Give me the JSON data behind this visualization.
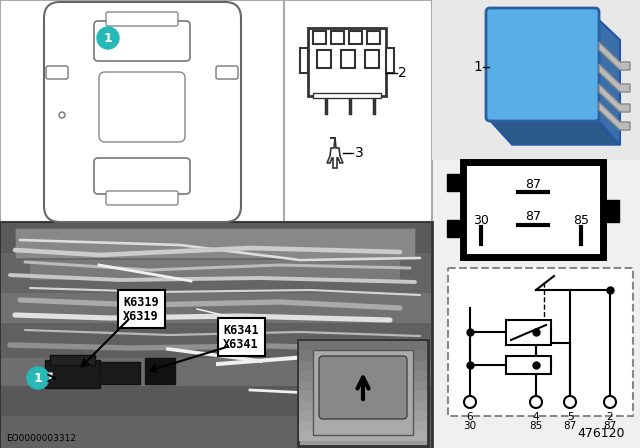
{
  "bg_color": "#f0f0f0",
  "white": "#ffffff",
  "black": "#000000",
  "cyan_color": "#29b8b8",
  "blue_relay_light": "#5aaee8",
  "blue_relay_dark": "#3a7fbb",
  "eo_code": "EO0000003312",
  "part_number": "476120",
  "k6319": "K6319",
  "x6319": "X6319",
  "k6341": "K6341",
  "x6341": "X6341",
  "circuit_pins_top": [
    "6",
    "4",
    "5",
    "2"
  ],
  "circuit_pins_bottom": [
    "30",
    "85",
    "87",
    "87"
  ],
  "relay_box_labels": [
    "87",
    "30",
    "87",
    "85"
  ],
  "item_labels": [
    "1",
    "2",
    "3"
  ]
}
